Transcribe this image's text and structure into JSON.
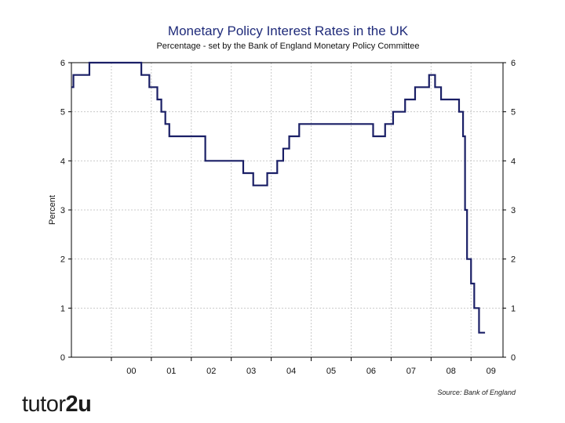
{
  "chart_data": {
    "type": "line",
    "title": "Monetary Policy Interest Rates in the UK",
    "subtitle": "Percentage - set by the Bank of England Monetary Policy Committee",
    "ylabel": "Percent",
    "xlabel": "",
    "ylim": [
      0,
      6
    ],
    "xlim": [
      1999.0,
      2009.8
    ],
    "yticks": [
      "0",
      "1",
      "2",
      "3",
      "4",
      "5",
      "6"
    ],
    "xticks": [
      {
        "label": "00",
        "x": 2000.5
      },
      {
        "label": "01",
        "x": 2001.5
      },
      {
        "label": "02",
        "x": 2002.5
      },
      {
        "label": "03",
        "x": 2003.5
      },
      {
        "label": "04",
        "x": 2004.5
      },
      {
        "label": "05",
        "x": 2005.5
      },
      {
        "label": "06",
        "x": 2006.5
      },
      {
        "label": "07",
        "x": 2007.5
      },
      {
        "label": "08",
        "x": 2008.5
      },
      {
        "label": "09",
        "x": 2009.5
      }
    ],
    "year_dividers": [
      2000,
      2001,
      2002,
      2003,
      2004,
      2005,
      2006,
      2007,
      2008,
      2009
    ],
    "grid": true,
    "step": true,
    "series": [
      {
        "color": "#1a1f66",
        "x": [
          1999.0,
          1999.05,
          1999.45,
          2000.55,
          2000.75,
          2000.95,
          2001.15,
          2001.25,
          2001.35,
          2001.45,
          2002.35,
          2003.3,
          2003.55,
          2003.9,
          2004.15,
          2004.3,
          2004.45,
          2004.7,
          2005.55,
          2006.55,
          2006.85,
          2007.05,
          2007.35,
          2007.6,
          2007.95,
          2008.1,
          2008.25,
          2008.7,
          2008.8,
          2008.85,
          2008.9,
          2009.0,
          2009.08,
          2009.2,
          2009.35
        ],
        "y": [
          5.5,
          5.75,
          6.0,
          6.0,
          5.75,
          5.5,
          5.25,
          5.0,
          4.75,
          4.5,
          4.0,
          3.75,
          3.5,
          3.75,
          4.0,
          4.25,
          4.5,
          4.75,
          4.75,
          4.5,
          4.75,
          5.0,
          5.25,
          5.5,
          5.75,
          5.5,
          5.25,
          5.0,
          4.5,
          3.0,
          2.0,
          1.5,
          1.0,
          0.5,
          0.5
        ]
      }
    ],
    "source": "Source: Bank of England"
  },
  "logo": {
    "part1": "tutor",
    "part2": "2u"
  },
  "colors": {
    "line": "#1a1f66",
    "title": "#1f2b7a",
    "grid": "#c9c9c9",
    "axis": "#000000"
  }
}
